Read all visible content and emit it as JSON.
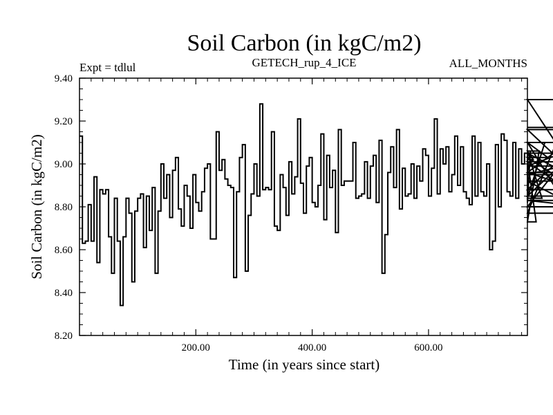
{
  "chart_data": {
    "type": "line",
    "title": "Soil Carbon (in kgC/m2)",
    "subtitle": "GETECH_rup_4_ICE",
    "left_note": "Expt = tdlul",
    "right_note": "ALL_MONTHS",
    "xlabel": "Time (in years since start)",
    "ylabel": "Soil Carbon (in kgC/m2)",
    "xlim": [
      0,
      770
    ],
    "ylim": [
      8.2,
      9.4
    ],
    "x_ticks": [
      200,
      400,
      600
    ],
    "x_tick_labels": [
      "200.00",
      "400.00",
      "600.00"
    ],
    "y_ticks": [
      8.2,
      8.4,
      8.6,
      8.8,
      9.0,
      9.2,
      9.4
    ],
    "y_tick_labels": [
      "8.20",
      "8.40",
      "8.60",
      "8.80",
      "9.00",
      "9.20",
      "9.40"
    ],
    "line_color": "#000000",
    "step": 5,
    "series": [
      {
        "values": [
          9.13,
          8.63,
          8.64,
          8.81,
          8.64,
          8.94,
          8.54,
          8.88,
          8.86,
          8.88,
          8.66,
          8.49,
          8.84,
          8.64,
          8.34,
          8.66,
          8.84,
          8.77,
          8.45,
          8.78,
          8.84,
          8.86,
          8.61,
          8.85,
          8.69,
          8.89,
          8.49,
          8.78,
          9.0,
          8.84,
          8.95,
          8.75,
          8.97,
          9.03,
          8.79,
          8.71,
          8.9,
          8.85,
          8.7,
          8.95,
          8.82,
          8.78,
          8.87,
          8.98,
          9.0,
          8.65,
          8.65,
          9.15,
          8.97,
          9.02,
          8.93,
          8.9,
          8.89,
          8.47,
          8.87,
          9.03,
          9.09,
          8.5,
          8.76,
          8.86,
          9.0,
          8.85,
          9.28,
          8.88,
          8.89,
          8.88,
          9.15,
          8.71,
          8.69,
          8.95,
          8.89,
          8.76,
          9.01,
          8.86,
          8.94,
          9.21,
          8.91,
          8.77,
          8.99,
          9.03,
          8.82,
          8.8,
          8.9,
          9.14,
          8.74,
          9.04,
          8.89,
          8.97,
          8.68,
          9.16,
          8.9,
          8.92,
          8.92,
          8.92,
          9.1,
          8.84,
          8.85,
          8.86,
          9.01,
          8.84,
          8.99,
          9.04,
          8.82,
          9.11,
          8.49,
          8.67,
          8.96,
          9.08,
          8.89,
          9.16,
          8.79,
          8.98,
          8.85,
          8.86,
          9.0,
          8.84,
          8.99,
          8.92,
          9.07,
          9.04,
          8.85,
          8.98,
          9.21,
          8.86,
          9.07,
          9.0,
          9.08,
          8.87,
          8.95,
          9.13,
          8.9,
          9.08,
          8.87,
          8.84,
          8.81,
          9.13,
          8.85,
          9.1,
          8.87,
          8.85,
          9.0,
          8.6,
          8.64,
          9.09,
          8.8,
          9.14,
          9.11,
          8.87,
          8.85,
          9.1,
          8.84,
          9.07,
          9.0,
          9.05,
          8.82,
          9.06,
          9.02,
          8.73,
          9.06,
          8.84,
          9.1,
          9.03,
          8.96,
          8.92,
          8.85,
          8.99,
          9.05,
          8.96,
          9.1,
          8.77,
          9.3,
          8.95,
          9.01,
          8.83,
          8.8,
          9.16,
          8.88,
          9.17
        ]
      }
    ]
  }
}
